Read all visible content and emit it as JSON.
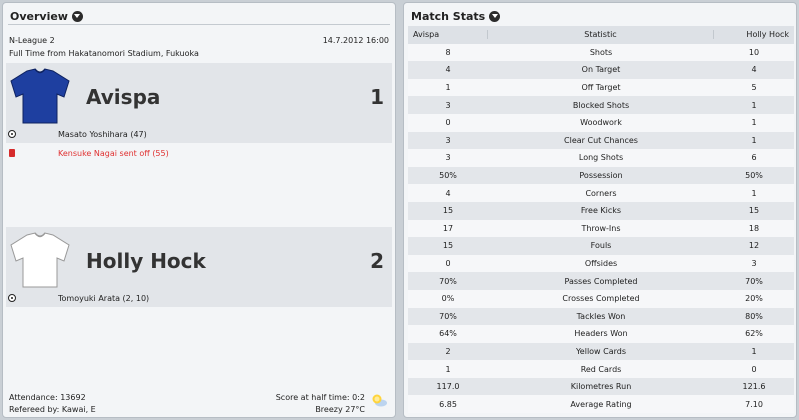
{
  "overview": {
    "title": "Overview",
    "league": "N-League 2",
    "date_time": "14.7.2012 16:00",
    "venue": "Full Time from Hakatanomori Stadium, Fukuoka",
    "home": {
      "name": "Avispa",
      "score": "1",
      "shirt_color": "#1e3fa0",
      "events": [
        {
          "type": "goal",
          "text": "Masato Yoshihara (47)"
        },
        {
          "type": "red-card",
          "text": "Kensuke Nagai sent off (55)"
        }
      ]
    },
    "away": {
      "name": "Holly Hock",
      "score": "2",
      "shirt_color": "#ffffff",
      "events": [
        {
          "type": "goal",
          "text": "Tomoyuki Arata (2, 10)"
        }
      ]
    },
    "attendance": "Attendance: 13692",
    "referee": "Refereed by: Kawai, E",
    "half_time": "Score at half time: 0:2",
    "weather": "Breezy 27°C"
  },
  "match_stats": {
    "title": "Match Stats",
    "columns": {
      "home": "Avispa",
      "stat": "Statistic",
      "away": "Holly Hock"
    },
    "rows": [
      {
        "home": "8",
        "stat": "Shots",
        "away": "10"
      },
      {
        "home": "4",
        "stat": "On Target",
        "away": "4"
      },
      {
        "home": "1",
        "stat": "Off Target",
        "away": "5"
      },
      {
        "home": "3",
        "stat": "Blocked Shots",
        "away": "1"
      },
      {
        "home": "0",
        "stat": "Woodwork",
        "away": "1"
      },
      {
        "home": "3",
        "stat": "Clear Cut Chances",
        "away": "1"
      },
      {
        "home": "3",
        "stat": "Long Shots",
        "away": "6"
      },
      {
        "home": "50%",
        "stat": "Possession",
        "away": "50%"
      },
      {
        "home": "4",
        "stat": "Corners",
        "away": "1"
      },
      {
        "home": "15",
        "stat": "Free Kicks",
        "away": "15"
      },
      {
        "home": "17",
        "stat": "Throw-Ins",
        "away": "18"
      },
      {
        "home": "15",
        "stat": "Fouls",
        "away": "12"
      },
      {
        "home": "0",
        "stat": "Offsides",
        "away": "3"
      },
      {
        "home": "70%",
        "stat": "Passes Completed",
        "away": "70%"
      },
      {
        "home": "0%",
        "stat": "Crosses Completed",
        "away": "20%"
      },
      {
        "home": "70%",
        "stat": "Tackles Won",
        "away": "80%"
      },
      {
        "home": "64%",
        "stat": "Headers Won",
        "away": "62%"
      },
      {
        "home": "2",
        "stat": "Yellow Cards",
        "away": "1"
      },
      {
        "home": "1",
        "stat": "Red Cards",
        "away": "0"
      },
      {
        "home": "117.0",
        "stat": "Kilometres Run",
        "away": "121.6"
      },
      {
        "home": "6.85",
        "stat": "Average Rating",
        "away": "7.10"
      }
    ]
  }
}
